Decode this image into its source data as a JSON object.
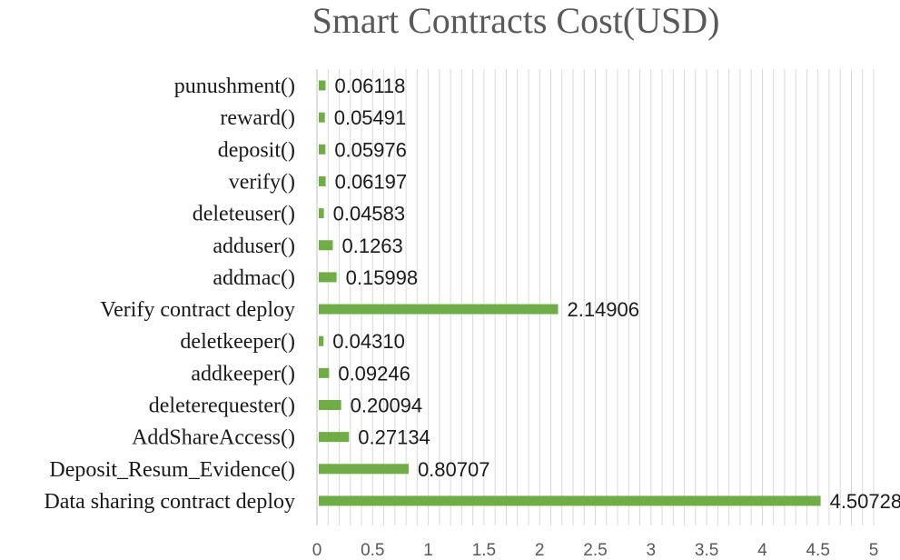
{
  "chart_data": {
    "type": "bar",
    "orientation": "horizontal",
    "title": "Smart Contracts Cost(USD)",
    "xlabel": "",
    "ylabel": "",
    "xlim": [
      0,
      5
    ],
    "x_ticks": [
      "0",
      "0.5",
      "1",
      "1.5",
      "2",
      "2.5",
      "3",
      "3.5",
      "4",
      "4.5",
      "5"
    ],
    "grid": true,
    "bar_color": "#70ad47",
    "categories": [
      "punushment()",
      "reward()",
      "deposit()",
      "verify()",
      "deleteuser()",
      "adduser()",
      "addmac()",
      "Verify contract deploy",
      "deletkeeper()",
      "addkeeper()",
      "deleterequester()",
      "AddShareAccess()",
      "Deposit_Resum_Evidence()",
      "Data sharing contract deploy"
    ],
    "values": [
      0.06118,
      0.05491,
      0.05976,
      0.06197,
      0.04583,
      0.1263,
      0.15998,
      2.14906,
      0.0431,
      0.09246,
      0.20094,
      0.27134,
      0.80707,
      4.50728
    ],
    "value_labels": [
      "0.06118",
      "0.05491",
      "0.05976",
      "0.06197",
      "0.04583",
      "0.1263",
      "0.15998",
      "2.14906",
      "0.04310",
      "0.09246",
      "0.20094",
      "0.27134",
      "0.80707",
      "4.50728"
    ]
  }
}
